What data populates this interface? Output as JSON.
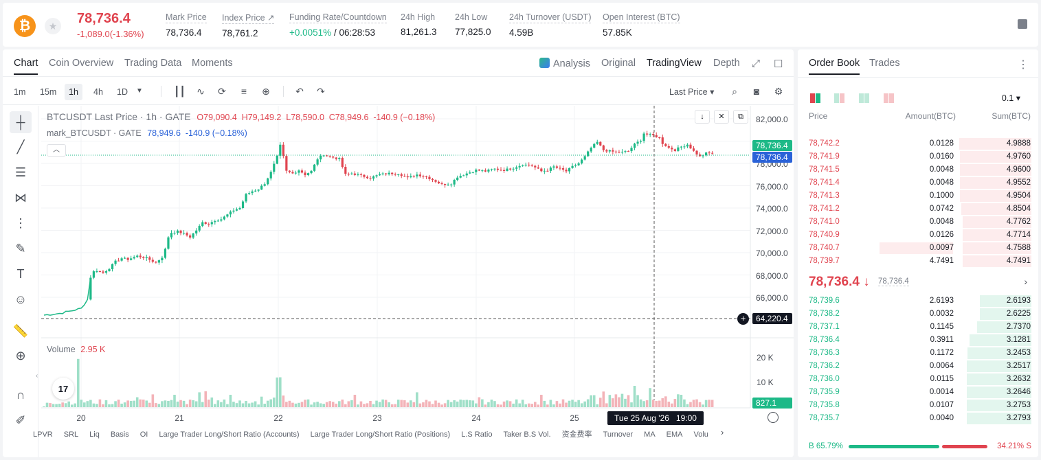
{
  "header": {
    "coin_symbol": "₿",
    "last_price": "78,736.4",
    "change": "-1,089.0(-1.36%)",
    "stats": [
      {
        "label": "Mark Price",
        "value": "78,736.4"
      },
      {
        "label": "Index Price ↗",
        "value": "78,761.2"
      },
      {
        "label": "Funding Rate/Countdown",
        "value_pos": "+0.0051%",
        "value": " / 06:28:53"
      },
      {
        "label": "24h High",
        "value": "81,261.3"
      },
      {
        "label": "24h Low",
        "value": "77,825.0"
      },
      {
        "label": "24h Turnover (USDT)",
        "value": "4.59B"
      },
      {
        "label": "Open Interest (BTC)",
        "value": "57.85K"
      }
    ]
  },
  "chart_tabs": [
    "Chart",
    "Coin Overview",
    "Trading Data",
    "Moments"
  ],
  "view_tabs": {
    "analysis": "Analysis",
    "original": "Original",
    "tradingview": "TradingView",
    "depth": "Depth"
  },
  "timeframes": [
    "1m",
    "15m",
    "1h",
    "4h",
    "1D"
  ],
  "active_timeframe": "1h",
  "price_type": "Last Price",
  "legend": {
    "symbol": "BTCUSDT Last Price · 1h · GATE",
    "o": "O79,090.4",
    "h": "H79,149.2",
    "l": "L78,590.0",
    "c": "C78,949.6",
    "chg": "-140.9 (−0.18%)",
    "mark_symbol": "mark_BTCUSDT · GATE",
    "mark_values": "78,949.6  -140.9 (−0.18%)"
  },
  "volume_legend": {
    "label": "Volume",
    "value": "2.95 K"
  },
  "price_tags": {
    "last": "78,736.4",
    "mark": "78,736.4",
    "crosshair": "64,220.4",
    "volume": "827.1"
  },
  "crosshair_time": "Tue 25 Aug '26   19:00",
  "tv_logo": "17",
  "bottom_indicators": [
    "LPVR",
    "SRL",
    "Liq",
    "Basis",
    "OI",
    "Large Trader Long/Short Ratio (Accounts)",
    "Large Trader Long/Short Ratio (Positions)",
    "L.S Ratio",
    "Taker B.S Vol.",
    "资金费率",
    "Turnover",
    "MA",
    "EMA",
    "Volu"
  ],
  "colors": {
    "up": "#1db987",
    "down": "#e0444f",
    "mark": "#2a62d8"
  },
  "chart_data": {
    "type": "candlestick",
    "x_ticks": [
      "20",
      "21",
      "22",
      "23",
      "24",
      "25"
    ],
    "y_ticks": [
      "82,000.0",
      "80,000.0",
      "78,000.0",
      "76,000.0",
      "74,000.0",
      "72,000.0",
      "70,000.0",
      "68,000.0",
      "66,000.0"
    ],
    "ylim": [
      64500,
      82500
    ],
    "volume_ticks": [
      "20 K",
      "10 K"
    ],
    "close_path": [
      [
        0,
        64400
      ],
      [
        5,
        64550
      ],
      [
        9,
        64800
      ],
      [
        12,
        65000
      ],
      [
        14,
        65800
      ],
      [
        15,
        67800
      ],
      [
        16,
        68300
      ],
      [
        17,
        68400
      ],
      [
        19,
        68200
      ],
      [
        21,
        68600
      ],
      [
        23,
        69200
      ],
      [
        25,
        69500
      ],
      [
        27,
        69400
      ],
      [
        30,
        69700
      ],
      [
        33,
        69500
      ],
      [
        36,
        69100
      ],
      [
        38,
        69600
      ],
      [
        39,
        70300
      ],
      [
        40,
        71400
      ],
      [
        41,
        71800
      ],
      [
        43,
        71900
      ],
      [
        45,
        71700
      ],
      [
        47,
        71400
      ],
      [
        49,
        72000
      ],
      [
        51,
        72700
      ],
      [
        53,
        72600
      ],
      [
        55,
        72900
      ],
      [
        57,
        73000
      ],
      [
        59,
        73400
      ],
      [
        61,
        73800
      ],
      [
        63,
        74000
      ],
      [
        65,
        75200
      ],
      [
        67,
        75500
      ],
      [
        69,
        75700
      ],
      [
        71,
        76200
      ],
      [
        73,
        77200
      ],
      [
        75,
        78600
      ],
      [
        76,
        79600
      ],
      [
        77,
        78600
      ],
      [
        78,
        77300
      ],
      [
        80,
        77100
      ],
      [
        82,
        77400
      ],
      [
        84,
        77000
      ],
      [
        86,
        77300
      ],
      [
        88,
        78400
      ],
      [
        90,
        78800
      ],
      [
        92,
        78600
      ],
      [
        95,
        78400
      ],
      [
        97,
        77000
      ],
      [
        99,
        77100
      ],
      [
        102,
        76900
      ],
      [
        105,
        76700
      ],
      [
        108,
        77000
      ],
      [
        111,
        77100
      ],
      [
        114,
        77100
      ],
      [
        117,
        76700
      ],
      [
        120,
        77000
      ],
      [
        123,
        76800
      ],
      [
        126,
        76400
      ],
      [
        128,
        76100
      ],
      [
        131,
        76200
      ],
      [
        133,
        76800
      ],
      [
        136,
        77100
      ],
      [
        139,
        77400
      ],
      [
        142,
        77300
      ],
      [
        145,
        77500
      ],
      [
        148,
        77400
      ],
      [
        151,
        77600
      ],
      [
        154,
        77900
      ],
      [
        157,
        77800
      ],
      [
        160,
        77300
      ],
      [
        162,
        77400
      ],
      [
        164,
        77700
      ],
      [
        166,
        77500
      ],
      [
        168,
        77300
      ],
      [
        170,
        77700
      ],
      [
        172,
        78000
      ],
      [
        174,
        78600
      ],
      [
        176,
        79400
      ],
      [
        178,
        79900
      ],
      [
        180,
        79200
      ],
      [
        182,
        79100
      ],
      [
        184,
        79000
      ],
      [
        186,
        79000
      ],
      [
        188,
        79100
      ],
      [
        190,
        79700
      ],
      [
        192,
        80100
      ],
      [
        193,
        80700
      ],
      [
        194,
        80600
      ],
      [
        196,
        80500
      ],
      [
        198,
        80300
      ],
      [
        199,
        79800
      ],
      [
        201,
        79400
      ],
      [
        203,
        79200
      ],
      [
        205,
        79500
      ],
      [
        207,
        79700
      ],
      [
        209,
        79100
      ],
      [
        211,
        78600
      ],
      [
        213,
        78900
      ],
      [
        215,
        78950
      ]
    ],
    "volume_note": "hourly volumes in thousands",
    "volume_peaks_k": [
      [
        0,
        0.3
      ],
      [
        10,
        1.5
      ],
      [
        11,
        19.5
      ],
      [
        12,
        3
      ],
      [
        30,
        4
      ],
      [
        42,
        5
      ],
      [
        50,
        6
      ],
      [
        60,
        5
      ],
      [
        75,
        12
      ],
      [
        76,
        8
      ],
      [
        100,
        5
      ],
      [
        120,
        6
      ],
      [
        140,
        4
      ],
      [
        160,
        5
      ],
      [
        180,
        6
      ],
      [
        190,
        7
      ],
      [
        195,
        5
      ],
      [
        205,
        5
      ],
      [
        215,
        2.95
      ]
    ]
  },
  "orderbook": {
    "tabs": [
      "Order Book",
      "Trades"
    ],
    "precision": "0.1 ▾",
    "columns": [
      "Price",
      "Amount(BTC)",
      "Sum(BTC)"
    ],
    "asks": [
      {
        "price": "78,742.2",
        "amount": "0.0128",
        "sum": "4.9888"
      },
      {
        "price": "78,741.9",
        "amount": "0.0160",
        "sum": "4.9760"
      },
      {
        "price": "78,741.5",
        "amount": "0.0048",
        "sum": "4.9600"
      },
      {
        "price": "78,741.4",
        "amount": "0.0048",
        "sum": "4.9552"
      },
      {
        "price": "78,741.3",
        "amount": "0.1000",
        "sum": "4.9504"
      },
      {
        "price": "78,741.2",
        "amount": "0.0742",
        "sum": "4.8504"
      },
      {
        "price": "78,741.0",
        "amount": "0.0048",
        "sum": "4.7762"
      },
      {
        "price": "78,740.9",
        "amount": "0.0126",
        "sum": "4.7714"
      },
      {
        "price": "78,740.7",
        "amount": "0.0097",
        "sum": "4.7588"
      },
      {
        "price": "78,739.7",
        "amount": "4.7491",
        "sum": "4.7491"
      }
    ],
    "mid_price": "78,736.4 ↓",
    "mid_mark": "78,736.4",
    "bids": [
      {
        "price": "78,739.6",
        "amount": "2.6193",
        "sum": "2.6193"
      },
      {
        "price": "78,738.2",
        "amount": "0.0032",
        "sum": "2.6225"
      },
      {
        "price": "78,737.1",
        "amount": "0.1145",
        "sum": "2.7370"
      },
      {
        "price": "78,736.4",
        "amount": "0.3911",
        "sum": "3.1281"
      },
      {
        "price": "78,736.3",
        "amount": "0.1172",
        "sum": "3.2453"
      },
      {
        "price": "78,736.2",
        "amount": "0.0064",
        "sum": "3.2517"
      },
      {
        "price": "78,736.0",
        "amount": "0.0115",
        "sum": "3.2632"
      },
      {
        "price": "78,735.9",
        "amount": "0.0014",
        "sum": "3.2646"
      },
      {
        "price": "78,735.8",
        "amount": "0.0107",
        "sum": "3.2753"
      },
      {
        "price": "78,735.7",
        "amount": "0.0040",
        "sum": "3.2793"
      }
    ],
    "buy_ratio": "B 65.79%",
    "sell_ratio": "34.21% S",
    "buy_fraction": 0.6579
  }
}
